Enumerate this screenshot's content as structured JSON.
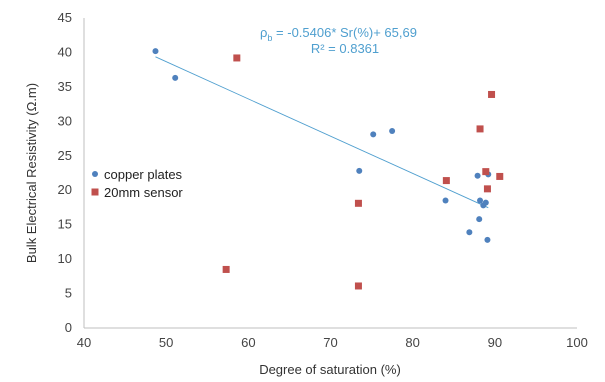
{
  "chart_data": {
    "type": "scatter",
    "title": "",
    "xlabel": "Degree of saturation (%)",
    "ylabel": "Bulk Electrical Resistivity (Ω.m)",
    "xlim": [
      40,
      100
    ],
    "ylim": [
      0,
      45
    ],
    "xticks": [
      "40",
      "50",
      "60",
      "70",
      "80",
      "90",
      "100"
    ],
    "yticks": [
      "0",
      "5",
      "10",
      "15",
      "20",
      "25",
      "30",
      "35",
      "40",
      "45"
    ],
    "grid": false,
    "legend_position": "left",
    "series": [
      {
        "name": "copper plates",
        "color": "#4f81bd",
        "marker": "circle",
        "points": [
          [
            48.7,
            40.2
          ],
          [
            51.1,
            36.3
          ],
          [
            73.5,
            22.8
          ],
          [
            75.2,
            28.1
          ],
          [
            77.5,
            28.6
          ],
          [
            84.0,
            18.5
          ],
          [
            86.9,
            13.9
          ],
          [
            87.9,
            22.1
          ],
          [
            88.1,
            15.8
          ],
          [
            88.2,
            18.5
          ],
          [
            88.6,
            17.8
          ],
          [
            88.9,
            18.2
          ],
          [
            89.1,
            12.8
          ],
          [
            89.2,
            22.3
          ]
        ]
      },
      {
        "name": "20mm sensor",
        "color": "#c0504d",
        "marker": "square",
        "points": [
          [
            57.3,
            8.5
          ],
          [
            58.6,
            39.2
          ],
          [
            73.4,
            18.1
          ],
          [
            73.4,
            6.1
          ],
          [
            84.1,
            21.4
          ],
          [
            88.2,
            28.9
          ],
          [
            88.9,
            22.7
          ],
          [
            89.1,
            20.2
          ],
          [
            89.6,
            33.9
          ],
          [
            90.6,
            22.0
          ]
        ]
      }
    ],
    "trendline": {
      "color": "#4f9fcf",
      "x_range": [
        48.7,
        89.2
      ],
      "slope": -0.5406,
      "intercept": 65.69,
      "equation_symbol": "ρ",
      "equation_subscript": "b",
      "equation_rest": " = -0.5406* Sr(%)+ 65,69",
      "r_squared": "R² = 0.8361"
    }
  }
}
